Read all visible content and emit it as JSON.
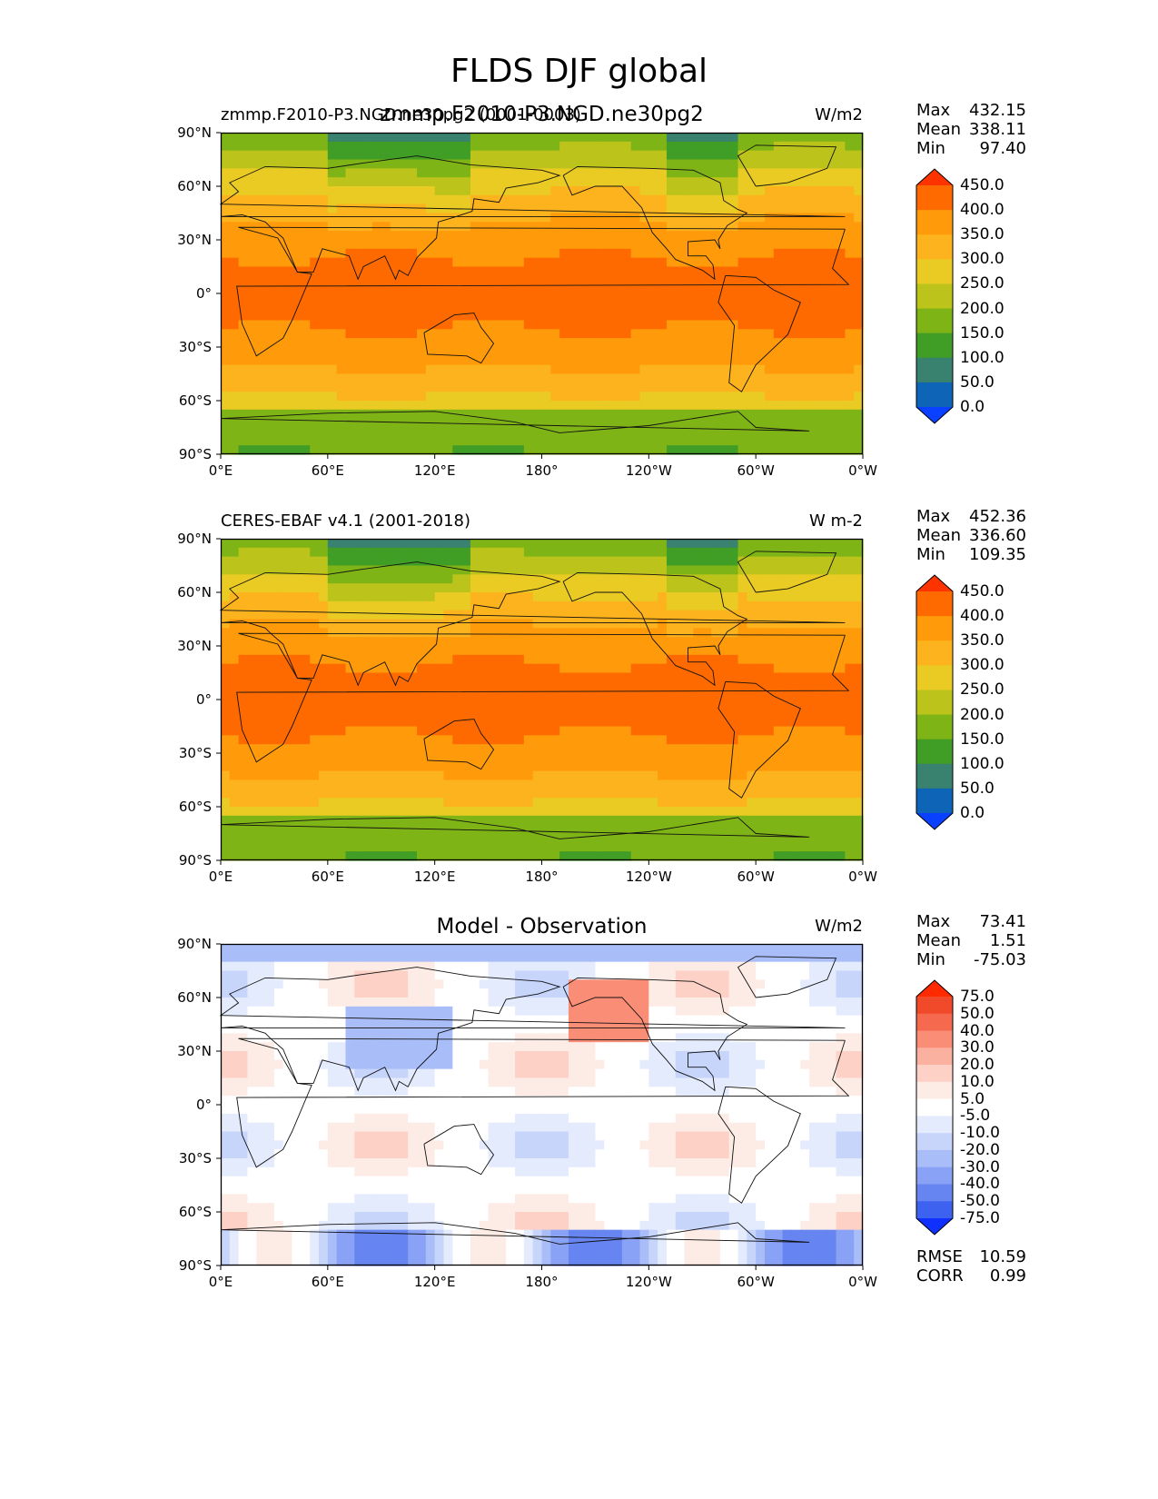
{
  "suptitle": "FLDS DJF global",
  "chart_data": [
    {
      "type": "heatmap",
      "left_title": "zmmp.F2010-P3.NGD.ne30pg2 (0001-0003)",
      "center_title": "zmmp.F2010-P3.NGD.ne30pg2",
      "units": "W/m2",
      "stats": {
        "Max": "432.15",
        "Mean": "338.11",
        "Min": "97.40"
      },
      "colorbar_levels": [
        "450.0",
        "400.0",
        "350.0",
        "300.0",
        "250.0",
        "200.0",
        "150.0",
        "100.0",
        "50.0",
        "0.0"
      ],
      "colorbar_colors": [
        "#ff3300",
        "#ff6a00",
        "#ff9a0a",
        "#fcb31d",
        "#e9cb23",
        "#bcc41c",
        "#7fb416",
        "#409d25",
        "#3a8270",
        "#0e64b6",
        "#0a40ff"
      ]
    },
    {
      "type": "heatmap",
      "left_title": "CERES-EBAF v4.1 (2001-2018)",
      "center_title": "",
      "units": "W m-2",
      "stats": {
        "Max": "452.36",
        "Mean": "336.60",
        "Min": "109.35"
      },
      "colorbar_levels": [
        "450.0",
        "400.0",
        "350.0",
        "300.0",
        "250.0",
        "200.0",
        "150.0",
        "100.0",
        "50.0",
        "0.0"
      ],
      "colorbar_colors": [
        "#ff3300",
        "#ff6a00",
        "#ff9a0a",
        "#fcb31d",
        "#e9cb23",
        "#bcc41c",
        "#7fb416",
        "#409d25",
        "#3a8270",
        "#0e64b6",
        "#0a40ff"
      ]
    },
    {
      "type": "heatmap",
      "left_title": "",
      "center_title": "Model - Observation",
      "units": "W/m2",
      "stats": {
        "Max": "73.41",
        "Mean": "1.51",
        "Min": "-75.03"
      },
      "colorbar_levels": [
        "75.0",
        "50.0",
        "40.0",
        "30.0",
        "20.0",
        "10.0",
        "5.0",
        "-5.0",
        "-10.0",
        "-20.0",
        "-30.0",
        "-40.0",
        "-50.0",
        "-75.0"
      ],
      "colorbar_colors": [
        "#ff2a00",
        "#f04a2a",
        "#f56a4e",
        "#f98d76",
        "#fbb1a0",
        "#fdd1c6",
        "#fdece6",
        "#ffffff",
        "#e4ebfd",
        "#c7d5fb",
        "#a9bdf8",
        "#8aa2f5",
        "#6685f1",
        "#3d62f0",
        "#1030ff"
      ],
      "metrics": {
        "RMSE": "10.59",
        "CORR": "0.99"
      }
    }
  ],
  "axes": {
    "x_ticks": [
      "0°E",
      "60°E",
      "120°E",
      "180°",
      "120°W",
      "60°W",
      "0°W"
    ],
    "y_ticks": [
      "90°N",
      "60°N",
      "30°N",
      "0°",
      "30°S",
      "60°S",
      "90°S"
    ]
  }
}
